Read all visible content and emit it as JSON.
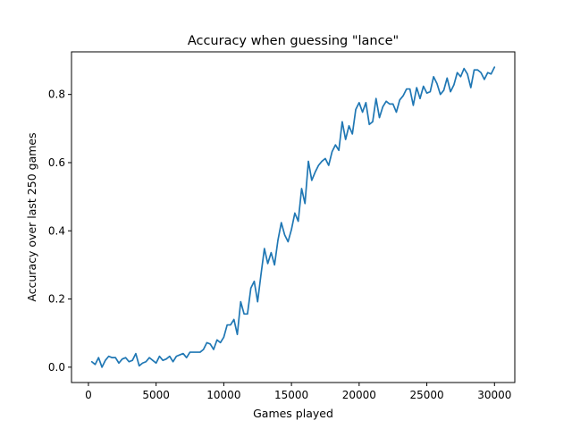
{
  "chart_data": {
    "type": "line",
    "title": "Accuracy when guessing \"lance\"",
    "xlabel": "Games played",
    "ylabel": "Accuracy over last 250 games",
    "xlim": [
      -1250,
      31500
    ],
    "ylim": [
      -0.045,
      0.925
    ],
    "xticks": [
      0,
      5000,
      10000,
      15000,
      20000,
      25000,
      30000
    ],
    "yticks": [
      0.0,
      0.2,
      0.4,
      0.6,
      0.8
    ],
    "ytick_labels": [
      "0.0",
      "0.2",
      "0.4",
      "0.6",
      "0.8"
    ],
    "grid": false,
    "legend": "none",
    "series": [
      {
        "color": "#1f77b4",
        "x": [
          250,
          500,
          750,
          1000,
          1250,
          1500,
          1750,
          2000,
          2250,
          2500,
          2750,
          3000,
          3250,
          3500,
          3750,
          4000,
          4250,
          4500,
          4750,
          5000,
          5250,
          5500,
          5750,
          6000,
          6250,
          6500,
          6750,
          7000,
          7250,
          7500,
          7750,
          8000,
          8250,
          8500,
          8750,
          9000,
          9250,
          9500,
          9750,
          10000,
          10250,
          10500,
          10750,
          11000,
          11250,
          11500,
          11750,
          12000,
          12250,
          12500,
          12750,
          13000,
          13250,
          13500,
          13750,
          14000,
          14250,
          14500,
          14750,
          15000,
          15250,
          15500,
          15750,
          16000,
          16250,
          16500,
          16750,
          17000,
          17250,
          17500,
          17750,
          18000,
          18250,
          18500,
          18750,
          19000,
          19250,
          19500,
          19750,
          20000,
          20250,
          20500,
          20750,
          21000,
          21250,
          21500,
          21750,
          22000,
          22250,
          22500,
          22750,
          23000,
          23250,
          23500,
          23750,
          24000,
          24250,
          24500,
          24750,
          25000,
          25250,
          25500,
          25750,
          26000,
          26250,
          26500,
          26750,
          27000,
          27250,
          27500,
          27750,
          28000,
          28250,
          28500,
          28750,
          29000,
          29250,
          29500,
          29750,
          30000
        ],
        "y": [
          0.016,
          0.008,
          0.028,
          0.0,
          0.02,
          0.032,
          0.028,
          0.028,
          0.012,
          0.024,
          0.028,
          0.016,
          0.02,
          0.04,
          0.004,
          0.012,
          0.016,
          0.028,
          0.02,
          0.012,
          0.032,
          0.02,
          0.024,
          0.032,
          0.016,
          0.032,
          0.036,
          0.04,
          0.028,
          0.044,
          0.044,
          0.044,
          0.044,
          0.052,
          0.072,
          0.068,
          0.052,
          0.08,
          0.072,
          0.088,
          0.124,
          0.124,
          0.14,
          0.096,
          0.192,
          0.156,
          0.156,
          0.232,
          0.252,
          0.192,
          0.272,
          0.348,
          0.304,
          0.336,
          0.3,
          0.372,
          0.424,
          0.388,
          0.368,
          0.404,
          0.452,
          0.428,
          0.524,
          0.48,
          0.604,
          0.548,
          0.572,
          0.592,
          0.604,
          0.612,
          0.592,
          0.632,
          0.652,
          0.636,
          0.72,
          0.668,
          0.708,
          0.684,
          0.756,
          0.776,
          0.748,
          0.776,
          0.712,
          0.72,
          0.788,
          0.732,
          0.764,
          0.78,
          0.772,
          0.772,
          0.748,
          0.784,
          0.796,
          0.816,
          0.816,
          0.768,
          0.82,
          0.788,
          0.824,
          0.804,
          0.808,
          0.852,
          0.832,
          0.8,
          0.812,
          0.848,
          0.808,
          0.828,
          0.864,
          0.852,
          0.876,
          0.86,
          0.82,
          0.872,
          0.872,
          0.864,
          0.844,
          0.864,
          0.86,
          0.88
        ]
      }
    ]
  }
}
